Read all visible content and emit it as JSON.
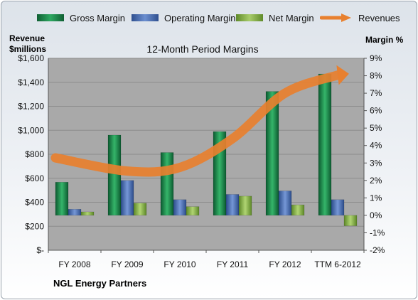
{
  "footer": "NGL Energy Partners",
  "chart_data": {
    "type": "bar",
    "title": "12-Month Period Margins",
    "y_left_label_line1": "Revenue",
    "y_left_label_line2": "$millions",
    "y_right_label": "Margin %",
    "categories": [
      "FY 2008",
      "FY 2009",
      "FY 2010",
      "FY 2011",
      "FY 2012",
      "TTM 6-2012"
    ],
    "y_left_ticks": [
      "$-",
      "$200",
      "$400",
      "$600",
      "$800",
      "$1,000",
      "$1,200",
      "$1,400",
      "$1,600"
    ],
    "y_right_ticks": [
      "-2%",
      "-1%",
      "0%",
      "1%",
      "2%",
      "3%",
      "4%",
      "5%",
      "6%",
      "7%",
      "8%",
      "9%"
    ],
    "y_left_lim": [
      0,
      1600
    ],
    "y_right_lim": [
      -2,
      9
    ],
    "series": [
      {
        "name": "Gross Margin",
        "axis": "right",
        "type": "bar",
        "color": "#1e8a4c",
        "values": [
          1.9,
          4.6,
          3.6,
          4.8,
          7.1,
          8.1
        ]
      },
      {
        "name": "Operating Margin",
        "axis": "right",
        "type": "bar",
        "color": "#4f73b8",
        "values": [
          0.35,
          2.0,
          0.9,
          1.2,
          1.4,
          0.9
        ]
      },
      {
        "name": "Net Margin",
        "axis": "right",
        "type": "bar",
        "color": "#8ab04a",
        "values": [
          0.2,
          0.7,
          0.5,
          1.1,
          0.6,
          -0.6
        ]
      },
      {
        "name": "Revenues",
        "axis": "left",
        "type": "line",
        "color": "#e8802f",
        "values": [
          770,
          660,
          690,
          930,
          1310,
          1460
        ]
      }
    ]
  }
}
